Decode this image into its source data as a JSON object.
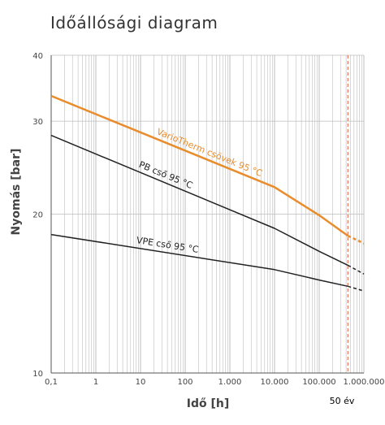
{
  "title": "Időállósági diagram",
  "colors": {
    "accent": "#e88c2c",
    "series": "#222222",
    "grid": "#bdbdbd",
    "marker": "#e25a3a"
  },
  "chart_data": {
    "type": "line",
    "title": "Időállósági diagram",
    "xlabel": "Idő [h]",
    "ylabel": "Nyomás [bar]",
    "xscale": "log",
    "yscale": "log",
    "xlim": [
      0.1,
      1000000
    ],
    "ylim": [
      10,
      40
    ],
    "grid": true,
    "x_ticks": [
      {
        "value": 0.1,
        "label": "0,1"
      },
      {
        "value": 1,
        "label": "1"
      },
      {
        "value": 10,
        "label": "10"
      },
      {
        "value": 100,
        "label": "100"
      },
      {
        "value": 1000,
        "label": "1.000"
      },
      {
        "value": 10000,
        "label": "10.000"
      },
      {
        "value": 100000,
        "label": "100.000"
      },
      {
        "value": 1000000,
        "label": "1.000.000"
      }
    ],
    "y_ticks": [
      {
        "value": 10,
        "label": "10"
      },
      {
        "value": 20,
        "label": "20"
      },
      {
        "value": 30,
        "label": "30"
      },
      {
        "value": 40,
        "label": "40"
      }
    ],
    "series": [
      {
        "name": "VarioTherm csövek 95 °C",
        "color": "#e88c2c",
        "width": 2.5,
        "points": [
          [
            0.1,
            33.5
          ],
          [
            10000,
            22.5
          ],
          [
            100000,
            19.9
          ],
          [
            438000,
            18.2
          ]
        ],
        "extrapolated": [
          [
            438000,
            18.2
          ],
          [
            1000000,
            17.6
          ]
        ]
      },
      {
        "name": "PB cső 95 °C",
        "color": "#222222",
        "width": 1.5,
        "points": [
          [
            0.1,
            28.2
          ],
          [
            10000,
            18.8
          ],
          [
            100000,
            17.0
          ],
          [
            438000,
            16.0
          ]
        ],
        "extrapolated": [
          [
            438000,
            16.0
          ],
          [
            1000000,
            15.4
          ]
        ]
      },
      {
        "name": "VPE cső 95 °C",
        "color": "#222222",
        "width": 1.5,
        "points": [
          [
            0.1,
            18.3
          ],
          [
            10000,
            15.7
          ],
          [
            100000,
            15.0
          ],
          [
            438000,
            14.6
          ]
        ],
        "extrapolated": [
          [
            438000,
            14.6
          ],
          [
            1000000,
            14.3
          ]
        ]
      }
    ],
    "annotations": [
      {
        "type": "vline",
        "x": 438000,
        "label": "50 év",
        "color": "#e25a3a",
        "style": "dashed"
      }
    ]
  }
}
